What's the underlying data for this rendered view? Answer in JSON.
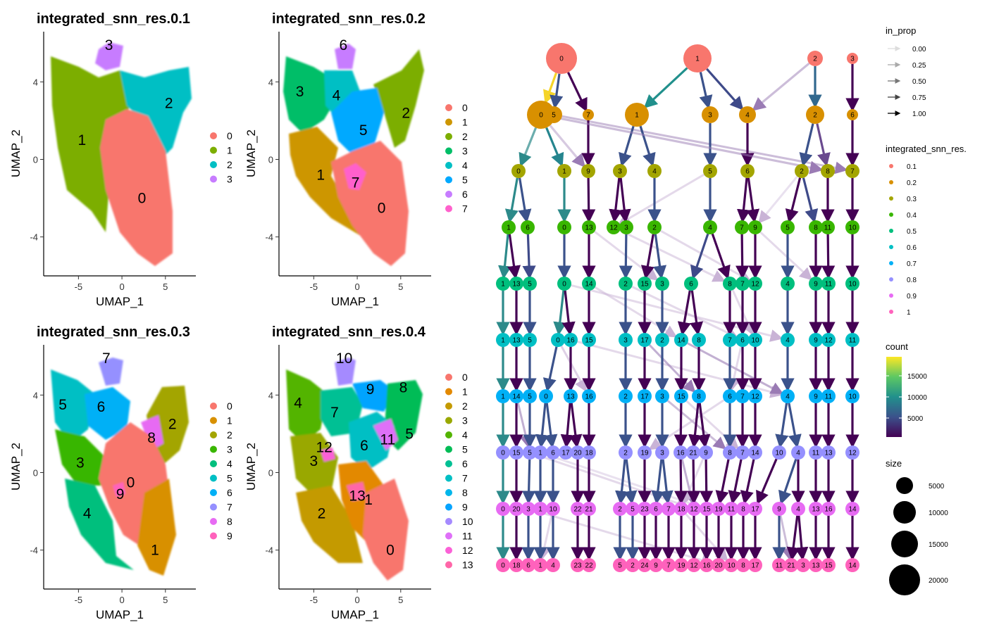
{
  "umap_panels": [
    {
      "title": "integrated_snn_res.0.1",
      "xlabel": "UMAP_1",
      "ylabel": "UMAP_2",
      "xticks": [
        -5,
        0,
        5
      ],
      "yticks": [
        4,
        0,
        -4
      ],
      "legend": [
        "0",
        "1",
        "2",
        "3"
      ],
      "colors": [
        "#F8766D",
        "#7CAE00",
        "#00BFC4",
        "#C77CFF"
      ],
      "labels": [
        {
          "text": "0",
          "x": 2.3,
          "y": -2.0
        },
        {
          "text": "1",
          "x": -4.6,
          "y": 1.0
        },
        {
          "text": "2",
          "x": 5.4,
          "y": 2.9
        },
        {
          "text": "3",
          "x": -1.5,
          "y": 5.9
        }
      ]
    },
    {
      "title": "integrated_snn_res.0.2",
      "xlabel": "UMAP_1",
      "ylabel": "UMAP_2",
      "xticks": [
        -5,
        0,
        5
      ],
      "yticks": [
        4,
        0,
        -4
      ],
      "legend": [
        "0",
        "1",
        "2",
        "3",
        "4",
        "5",
        "6",
        "7"
      ],
      "colors": [
        "#F8766D",
        "#CD9600",
        "#7CAE00",
        "#00BE67",
        "#00BFC4",
        "#00A9FF",
        "#C77CFF",
        "#FF61CC"
      ],
      "labels": [
        {
          "text": "0",
          "x": 2.8,
          "y": -2.5
        },
        {
          "text": "1",
          "x": -4.2,
          "y": -0.8
        },
        {
          "text": "2",
          "x": 5.6,
          "y": 2.4
        },
        {
          "text": "3",
          "x": -6.6,
          "y": 3.5
        },
        {
          "text": "4",
          "x": -2.4,
          "y": 3.3
        },
        {
          "text": "5",
          "x": 0.7,
          "y": 1.5
        },
        {
          "text": "6",
          "x": -1.6,
          "y": 5.9
        },
        {
          "text": "7",
          "x": -0.2,
          "y": -1.2
        }
      ]
    },
    {
      "title": "integrated_snn_res.0.3",
      "xlabel": "UMAP_1",
      "ylabel": "UMAP_2",
      "xticks": [
        -5,
        0,
        5
      ],
      "yticks": [
        4,
        0,
        -4
      ],
      "legend": [
        "0",
        "1",
        "2",
        "3",
        "4",
        "5",
        "6",
        "7",
        "8",
        "9"
      ],
      "colors": [
        "#F8766D",
        "#D89000",
        "#A3A500",
        "#39B600",
        "#00BF7D",
        "#00BFC4",
        "#00B0F6",
        "#9590FF",
        "#E76BF3",
        "#FF62BC"
      ],
      "labels": [
        {
          "text": "0",
          "x": 1.0,
          "y": -0.5
        },
        {
          "text": "1",
          "x": 3.8,
          "y": -4.0
        },
        {
          "text": "2",
          "x": 5.8,
          "y": 2.5
        },
        {
          "text": "3",
          "x": -4.8,
          "y": 0.5
        },
        {
          "text": "4",
          "x": -4.0,
          "y": -2.1
        },
        {
          "text": "5",
          "x": -6.8,
          "y": 3.5
        },
        {
          "text": "6",
          "x": -2.4,
          "y": 3.4
        },
        {
          "text": "7",
          "x": -1.8,
          "y": 5.9
        },
        {
          "text": "8",
          "x": 3.4,
          "y": 1.8
        },
        {
          "text": "9",
          "x": -0.2,
          "y": -1.1
        }
      ]
    },
    {
      "title": "integrated_snn_res.0.4",
      "xlabel": "UMAP_1",
      "ylabel": "UMAP_2",
      "xticks": [
        -5,
        0,
        5
      ],
      "yticks": [
        4,
        0,
        -4
      ],
      "legend": [
        "0",
        "1",
        "2",
        "3",
        "4",
        "5",
        "6",
        "7",
        "8",
        "9",
        "10",
        "11",
        "12",
        "13"
      ],
      "colors": [
        "#F8766D",
        "#E38900",
        "#C49A00",
        "#99A800",
        "#53B400",
        "#00BC56",
        "#00C094",
        "#00BFC4",
        "#00B6EB",
        "#06A4FF",
        "#A58AFF",
        "#DF70F8",
        "#FB61D7",
        "#FF66A8"
      ],
      "labels": [
        {
          "text": "0",
          "x": 3.8,
          "y": -4.0
        },
        {
          "text": "1",
          "x": 1.3,
          "y": -1.4
        },
        {
          "text": "2",
          "x": -4.1,
          "y": -2.1
        },
        {
          "text": "3",
          "x": -5.0,
          "y": 0.6
        },
        {
          "text": "4",
          "x": -6.8,
          "y": 3.6
        },
        {
          "text": "5",
          "x": 6.0,
          "y": 2.0
        },
        {
          "text": "6",
          "x": 0.8,
          "y": 1.4
        },
        {
          "text": "7",
          "x": -2.6,
          "y": 3.1
        },
        {
          "text": "8",
          "x": 5.3,
          "y": 4.4
        },
        {
          "text": "9",
          "x": 1.5,
          "y": 4.3
        },
        {
          "text": "10",
          "x": -1.5,
          "y": 5.9
        },
        {
          "text": "11",
          "x": 3.5,
          "y": 1.7
        },
        {
          "text": "12",
          "x": -3.8,
          "y": 1.3
        },
        {
          "text": "13",
          "x": 0.0,
          "y": -1.2
        }
      ]
    }
  ],
  "clustree": {
    "legends": {
      "in_prop_title": "in_prop",
      "in_prop_values": [
        "0.00",
        "0.25",
        "0.50",
        "0.75",
        "1.00"
      ],
      "res_title": "integrated_snn_res.",
      "res_values": [
        "0.1",
        "0.2",
        "0.3",
        "0.4",
        "0.5",
        "0.6",
        "0.7",
        "0.8",
        "0.9",
        "1"
      ],
      "res_colors": [
        "#F8766D",
        "#D89000",
        "#A3A500",
        "#39B600",
        "#00BF7D",
        "#00BFC4",
        "#00B0F6",
        "#9590FF",
        "#E76BF3",
        "#FF62BC"
      ],
      "count_title": "count",
      "count_ticks": [
        "15000",
        "10000",
        "5000"
      ],
      "size_title": "size",
      "size_values": [
        "5000",
        "10000",
        "15000",
        "20000"
      ]
    },
    "levels": [
      [
        "0",
        "1",
        "2",
        "3"
      ],
      [
        "0",
        "5",
        "7",
        "1",
        "3",
        "4",
        "2",
        "6"
      ],
      [
        "0",
        "1",
        "9",
        "3",
        "4",
        "5",
        "6",
        "2",
        "8",
        "7"
      ],
      [
        "1",
        "6",
        "0",
        "13",
        "12",
        "3",
        "2",
        "4",
        "7",
        "9",
        "5",
        "8",
        "11",
        "10"
      ],
      [
        "1",
        "13",
        "5",
        "0",
        "14",
        "2",
        "15",
        "3",
        "6",
        "8",
        "7",
        "12",
        "4",
        "9",
        "11",
        "10"
      ],
      [
        "1",
        "13",
        "5",
        "0",
        "16",
        "15",
        "3",
        "17",
        "2",
        "14",
        "8",
        "7",
        "6",
        "10",
        "4",
        "9",
        "12",
        "11"
      ],
      [
        "1",
        "14",
        "5",
        "0",
        "13",
        "16",
        "2",
        "17",
        "3",
        "15",
        "8",
        "6",
        "7",
        "12",
        "4",
        "9",
        "11",
        "10"
      ],
      [
        "0",
        "15",
        "5",
        "1",
        "6",
        "17",
        "20",
        "18",
        "2",
        "19",
        "3",
        "16",
        "21",
        "9",
        "8",
        "7",
        "14",
        "10",
        "4",
        "11",
        "13",
        "12"
      ],
      [
        "0",
        "20",
        "3",
        "1",
        "10",
        "22",
        "21",
        "2",
        "5",
        "23",
        "6",
        "7",
        "18",
        "12",
        "15",
        "19",
        "11",
        "8",
        "17",
        "9",
        "4",
        "13",
        "16",
        "14"
      ],
      [
        "0",
        "18",
        "6",
        "1",
        "4",
        "23",
        "22",
        "5",
        "2",
        "24",
        "9",
        "7",
        "19",
        "12",
        "16",
        "20",
        "10",
        "8",
        "17",
        "11",
        "21",
        "3",
        "13",
        "15",
        "14"
      ]
    ]
  }
}
